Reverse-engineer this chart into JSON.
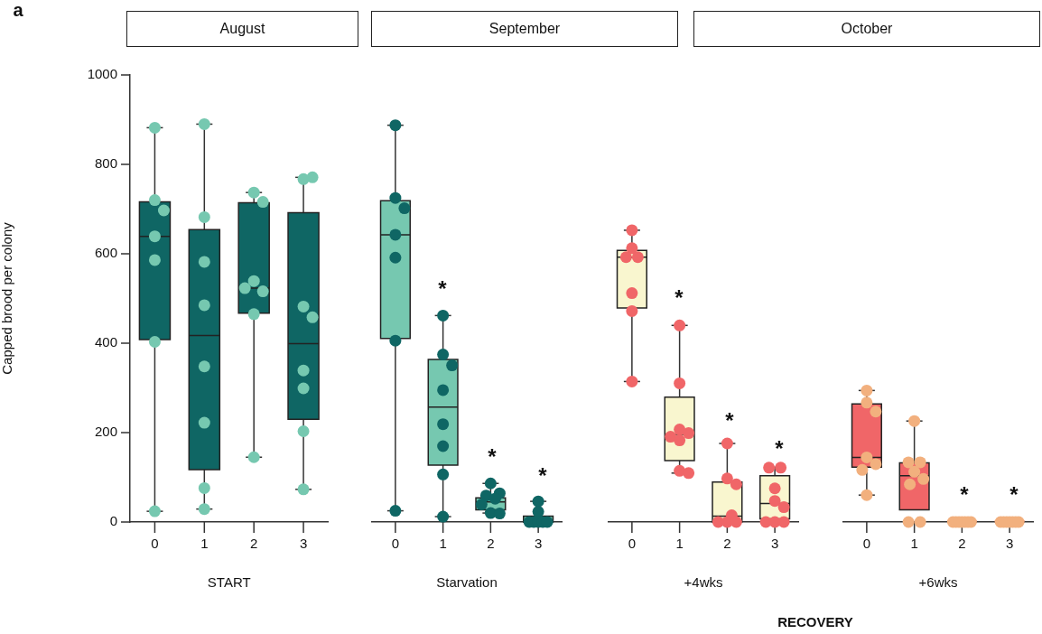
{
  "chart_data": [
    {
      "type": "box",
      "title": "August",
      "xlabel": "START",
      "ylabel": "Capped brood per colony",
      "annotations": [
        "a"
      ],
      "categories": [
        "0",
        "1",
        "2",
        "3"
      ],
      "ylim": [
        0,
        1000
      ],
      "yticks": [
        0,
        200,
        400,
        600,
        800,
        1000
      ],
      "grid": false,
      "legend": false,
      "marker": "circle",
      "series": [
        {
          "type": "box",
          "color": "#0f6664",
          "boxes": [
            {
              "low": 24,
              "q1": 408,
              "median": 639,
              "q3": 716,
              "high": 882
            },
            {
              "low": 29,
              "q1": 117,
              "median": 417,
              "q3": 654,
              "high": 890
            },
            {
              "low": 145,
              "q1": 467,
              "median": 523,
              "q3": 714,
              "high": 737
            },
            {
              "low": 73,
              "q1": 230,
              "median": 399,
              "q3": 692,
              "high": 771
            }
          ]
        },
        {
          "type": "scatter",
          "color": "#76c8b0",
          "x": [
            "0",
            "0",
            "0",
            "0",
            "0",
            "0",
            "0",
            "1",
            "1",
            "1",
            "1",
            "1",
            "1",
            "1",
            "1",
            "2",
            "2",
            "2",
            "2",
            "2",
            "2",
            "2",
            "3",
            "3",
            "3",
            "3",
            "3",
            "3",
            "3",
            "3"
          ],
          "values": [
            882,
            720,
            697,
            639,
            586,
            403,
            24,
            890,
            682,
            582,
            485,
            348,
            222,
            76,
            29,
            737,
            716,
            539,
            516,
            523,
            465,
            145,
            767,
            771,
            482,
            458,
            339,
            299,
            203,
            73
          ]
        }
      ]
    },
    {
      "type": "box",
      "title": "September",
      "xlabel": "Starvation",
      "categories": [
        "0",
        "1",
        "2",
        "3"
      ],
      "ylim": [
        0,
        1000
      ],
      "yticks": [
        0,
        200,
        400,
        600,
        800,
        1000
      ],
      "tick_labels": "x",
      "grid": false,
      "legend": false,
      "marker": "circle",
      "annotations": [
        "*",
        "*",
        "*"
      ],
      "series": [
        {
          "type": "box",
          "color": "#76c8b0",
          "boxes": [
            {
              "low": 25,
              "q1": 409,
              "median": 640,
              "q3": 716,
              "high": 884
            },
            {
              "low": 12,
              "q1": 127,
              "median": 256,
              "q3": 362,
              "high": 460
            },
            {
              "low": 20,
              "q1": 27,
              "median": 45,
              "q3": 54,
              "high": 86
            },
            {
              "low": 0,
              "q1": 0,
              "median": 0,
              "q3": 13,
              "high": 46
            }
          ]
        },
        {
          "type": "scatter",
          "color": "#0f6664",
          "x": [
            "0",
            "0",
            "0",
            "0",
            "0",
            "0",
            "0",
            "1",
            "1",
            "1",
            "1",
            "1",
            "1",
            "1",
            "1",
            "2",
            "2",
            "2",
            "2",
            "2",
            "2",
            "2",
            "3",
            "3",
            "3",
            "3",
            "3",
            "3",
            "3"
          ],
          "values": [
            884,
            722,
            699,
            640,
            589,
            404,
            25,
            460,
            373,
            349,
            294,
            218,
            169,
            106,
            12,
            86,
            64,
            59,
            52,
            39,
            20,
            19,
            46,
            23,
            0,
            0,
            0,
            0,
            0
          ]
        }
      ]
    },
    {
      "type": "box",
      "xlabel": "+4wks",
      "annotations": [
        "RECOVERY",
        "*",
        "*",
        "*"
      ],
      "categories": [
        "0",
        "1",
        "2",
        "3"
      ],
      "ylim": [
        0,
        1000
      ],
      "yticks": [
        0,
        200,
        400,
        600,
        800,
        1000
      ],
      "tick_labels": "x",
      "grid": false,
      "legend": false,
      "marker": "circle",
      "series": [
        {
          "type": "box",
          "color": "#f9f6cf",
          "boxes": [
            {
              "low": 313,
              "q1": 477,
              "median": 590,
              "q3": 605,
              "high": 650
            },
            {
              "low": 109,
              "q1": 137,
              "median": 195,
              "q3": 278,
              "high": 438
            },
            {
              "low": 0,
              "q1": 0,
              "median": 13,
              "q3": 89,
              "high": 175
            },
            {
              "low": 0,
              "q1": 7,
              "median": 41,
              "q3": 103,
              "high": 122
            }
          ]
        },
        {
          "type": "scatter",
          "color": "#f06668",
          "x": [
            "0",
            "0",
            "0",
            "0",
            "0",
            "0",
            "0",
            "1",
            "1",
            "1",
            "1",
            "1",
            "1",
            "1",
            "1",
            "2",
            "2",
            "2",
            "2",
            "2",
            "2",
            "2",
            "3",
            "3",
            "3",
            "3",
            "3",
            "3",
            "3",
            "3"
          ],
          "values": [
            650,
            610,
            590,
            590,
            510,
            470,
            313,
            438,
            309,
            206,
            198,
            190,
            182,
            114,
            109,
            175,
            97,
            84,
            15,
            0,
            0,
            0,
            121,
            121,
            75,
            47,
            33,
            0,
            0,
            0
          ]
        }
      ]
    },
    {
      "type": "box",
      "title": "October",
      "xlabel": "+6wks",
      "annotations": [
        "*",
        "*"
      ],
      "categories": [
        "0",
        "1",
        "2",
        "3"
      ],
      "ylim": [
        0,
        1000
      ],
      "yticks": [
        0,
        200,
        400,
        600,
        800,
        1000
      ],
      "tick_labels": "x",
      "grid": false,
      "legend": false,
      "marker": "circle",
      "series": [
        {
          "type": "box",
          "color": "#f06668",
          "boxes": [
            {
              "low": 60,
              "q1": 122,
              "median": 144,
              "q3": 263,
              "high": 293
            },
            {
              "low": 27,
              "q1": 27,
              "median": 103,
              "q3": 132,
              "high": 225
            },
            {
              "low": 0,
              "q1": 0,
              "median": 0,
              "q3": 0,
              "high": 0
            },
            {
              "low": 0,
              "q1": 0,
              "median": 0,
              "q3": 0,
              "high": 0
            }
          ]
        },
        {
          "type": "scatter",
          "color": "#f2b07e",
          "x": [
            "0",
            "0",
            "0",
            "0",
            "0",
            "0",
            "0",
            "1",
            "1",
            "1",
            "1",
            "1",
            "1",
            "1",
            "1",
            "2",
            "2",
            "2",
            "2",
            "2",
            "2",
            "2",
            "3",
            "3",
            "3",
            "3",
            "3",
            "3",
            "3"
          ],
          "values": [
            293,
            266,
            246,
            144,
            129,
            116,
            60,
            225,
            133,
            133,
            112,
            96,
            84,
            0,
            0,
            0,
            0,
            0,
            0,
            0,
            0,
            0,
            0,
            0,
            0,
            0,
            0,
            0,
            0
          ]
        }
      ]
    }
  ]
}
